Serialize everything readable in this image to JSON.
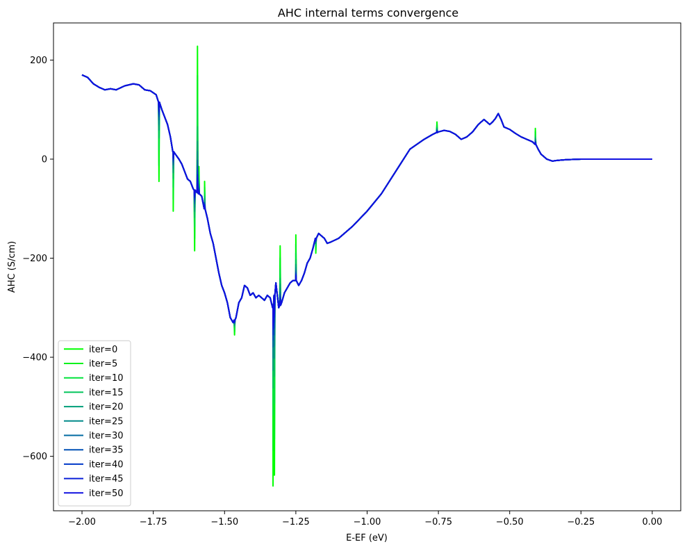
{
  "chart_data": {
    "type": "line",
    "title": "AHC internal terms convergence",
    "xlabel": "E-EF (eV)",
    "ylabel": "AHC (S/cm)",
    "xlim": [
      -2.1,
      0.1
    ],
    "ylim": [
      -710,
      275
    ],
    "xticks": [
      -2.0,
      -1.75,
      -1.5,
      -1.25,
      -1.0,
      -0.75,
      -0.5,
      -0.25,
      0.0
    ],
    "xtick_labels": [
      "−2.00",
      "−1.75",
      "−1.50",
      "−1.25",
      "−1.00",
      "−0.75",
      "−0.50",
      "−0.25",
      "0.00"
    ],
    "yticks": [
      200,
      0,
      -200,
      -400,
      -600
    ],
    "ytick_labels": [
      "200",
      "0",
      "−200",
      "−400",
      "−600"
    ],
    "grid": false,
    "legend_position": "lower-left",
    "base_curve": {
      "x": [
        -2.0,
        -1.98,
        -1.96,
        -1.94,
        -1.92,
        -1.9,
        -1.88,
        -1.85,
        -1.82,
        -1.8,
        -1.78,
        -1.76,
        -1.74,
        -1.72,
        -1.7,
        -1.69,
        -1.68,
        -1.67,
        -1.66,
        -1.65,
        -1.64,
        -1.63,
        -1.62,
        -1.61,
        -1.6,
        -1.59,
        -1.58,
        -1.57,
        -1.56,
        -1.55,
        -1.54,
        -1.53,
        -1.52,
        -1.51,
        -1.5,
        -1.49,
        -1.48,
        -1.47,
        -1.46,
        -1.45,
        -1.44,
        -1.43,
        -1.42,
        -1.41,
        -1.4,
        -1.39,
        -1.38,
        -1.37,
        -1.36,
        -1.35,
        -1.34,
        -1.33,
        -1.32,
        -1.31,
        -1.3,
        -1.29,
        -1.28,
        -1.27,
        -1.26,
        -1.25,
        -1.24,
        -1.23,
        -1.22,
        -1.21,
        -1.2,
        -1.19,
        -1.18,
        -1.17,
        -1.16,
        -1.15,
        -1.14,
        -1.13,
        -1.1,
        -1.05,
        -1.0,
        -0.95,
        -0.9,
        -0.85,
        -0.8,
        -0.77,
        -0.75,
        -0.73,
        -0.71,
        -0.69,
        -0.67,
        -0.65,
        -0.63,
        -0.61,
        -0.6,
        -0.59,
        -0.58,
        -0.57,
        -0.56,
        -0.55,
        -0.54,
        -0.53,
        -0.52,
        -0.5,
        -0.48,
        -0.46,
        -0.44,
        -0.42,
        -0.41,
        -0.4,
        -0.39,
        -0.38,
        -0.37,
        -0.36,
        -0.35,
        -0.34,
        -0.32,
        -0.3,
        -0.25,
        -0.2,
        -0.1,
        0.0
      ],
      "y": [
        170,
        165,
        152,
        145,
        140,
        142,
        140,
        148,
        152,
        150,
        140,
        138,
        130,
        100,
        70,
        45,
        15,
        8,
        0,
        -10,
        -25,
        -40,
        -45,
        -60,
        -65,
        -70,
        -75,
        -100,
        -120,
        -150,
        -170,
        -200,
        -230,
        -255,
        -270,
        -290,
        -320,
        -330,
        -320,
        -290,
        -280,
        -255,
        -260,
        -275,
        -270,
        -280,
        -275,
        -280,
        -285,
        -275,
        -280,
        -300,
        -250,
        -300,
        -290,
        -270,
        -260,
        -250,
        -245,
        -245,
        -255,
        -245,
        -230,
        -210,
        -200,
        -180,
        -160,
        -150,
        -155,
        -160,
        -170,
        -168,
        -160,
        -135,
        -105,
        -70,
        -25,
        20,
        40,
        50,
        55,
        58,
        56,
        50,
        40,
        45,
        55,
        70,
        75,
        80,
        75,
        70,
        75,
        82,
        92,
        80,
        65,
        60,
        52,
        45,
        40,
        35,
        30,
        20,
        10,
        5,
        0,
        -2,
        -4,
        -3,
        -2,
        -1,
        0,
        0,
        0,
        0
      ]
    },
    "spikes": [
      {
        "x": -1.73,
        "y": -45
      },
      {
        "x": -1.68,
        "y": -105
      },
      {
        "x": -1.605,
        "y": -185
      },
      {
        "x": -1.595,
        "y": 228
      },
      {
        "x": -1.59,
        "y": -15
      },
      {
        "x": -1.57,
        "y": -45
      },
      {
        "x": -1.465,
        "y": -355
      },
      {
        "x": -1.33,
        "y": -660
      },
      {
        "x": -1.325,
        "y": -638
      },
      {
        "x": -1.305,
        "y": -175
      },
      {
        "x": -1.25,
        "y": -153
      },
      {
        "x": -1.18,
        "y": -190
      },
      {
        "x": -0.755,
        "y": 75
      },
      {
        "x": -0.41,
        "y": 62
      }
    ],
    "series": [
      {
        "name": "iter=0",
        "color": "#00ff00",
        "spike_scale": 1.0
      },
      {
        "name": "iter=5",
        "color": "#00f21a",
        "spike_scale": 0.8
      },
      {
        "name": "iter=10",
        "color": "#00e33a",
        "spike_scale": 0.6
      },
      {
        "name": "iter=15",
        "color": "#00c45a",
        "spike_scale": 0.45
      },
      {
        "name": "iter=20",
        "color": "#009e78",
        "spike_scale": 0.35
      },
      {
        "name": "iter=25",
        "color": "#008a8a",
        "spike_scale": 0.28
      },
      {
        "name": "iter=30",
        "color": "#006aa0",
        "spike_scale": 0.22
      },
      {
        "name": "iter=35",
        "color": "#0050b5",
        "spike_scale": 0.18
      },
      {
        "name": "iter=40",
        "color": "#0038c8",
        "spike_scale": 0.15
      },
      {
        "name": "iter=45",
        "color": "#0a1fd8",
        "spike_scale": 0.12
      },
      {
        "name": "iter=50",
        "color": "#1010e0",
        "spike_scale": 0.1
      }
    ]
  }
}
